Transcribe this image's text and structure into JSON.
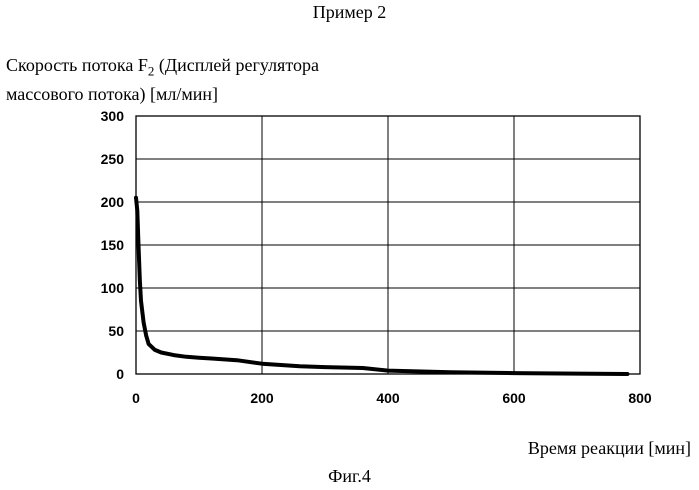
{
  "page": {
    "top_caption": "Пример 2",
    "bottom_caption": "Фиг.4"
  },
  "chart_data": {
    "type": "line",
    "title": "",
    "ylabel_line1": "Скорость потока F",
    "ylabel_sub": "2",
    "ylabel_line1_rest": " (Дисплей регулятора",
    "ylabel_line2": "массового потока) [мл/мин]",
    "xlabel": "Время реакции [мин]",
    "xlim": [
      0,
      800
    ],
    "ylim": [
      0,
      300
    ],
    "x_ticks": [
      0,
      200,
      400,
      600,
      800
    ],
    "y_ticks": [
      0,
      50,
      100,
      150,
      200,
      250,
      300
    ],
    "grid": true,
    "legend": "none",
    "series": [
      {
        "x": [
          0,
          2,
          4,
          6,
          8,
          12,
          16,
          20,
          30,
          40,
          60,
          80,
          100,
          120,
          160,
          200,
          260,
          300,
          360,
          400,
          500,
          600,
          700,
          780
        ],
        "values": [
          205,
          190,
          150,
          110,
          85,
          60,
          45,
          35,
          28,
          25,
          22,
          20,
          19,
          18,
          16,
          12,
          9,
          8,
          7,
          4,
          2,
          1,
          0.5,
          0
        ]
      }
    ],
    "colors": {
      "line": "#000000",
      "grid": "#000000"
    }
  }
}
